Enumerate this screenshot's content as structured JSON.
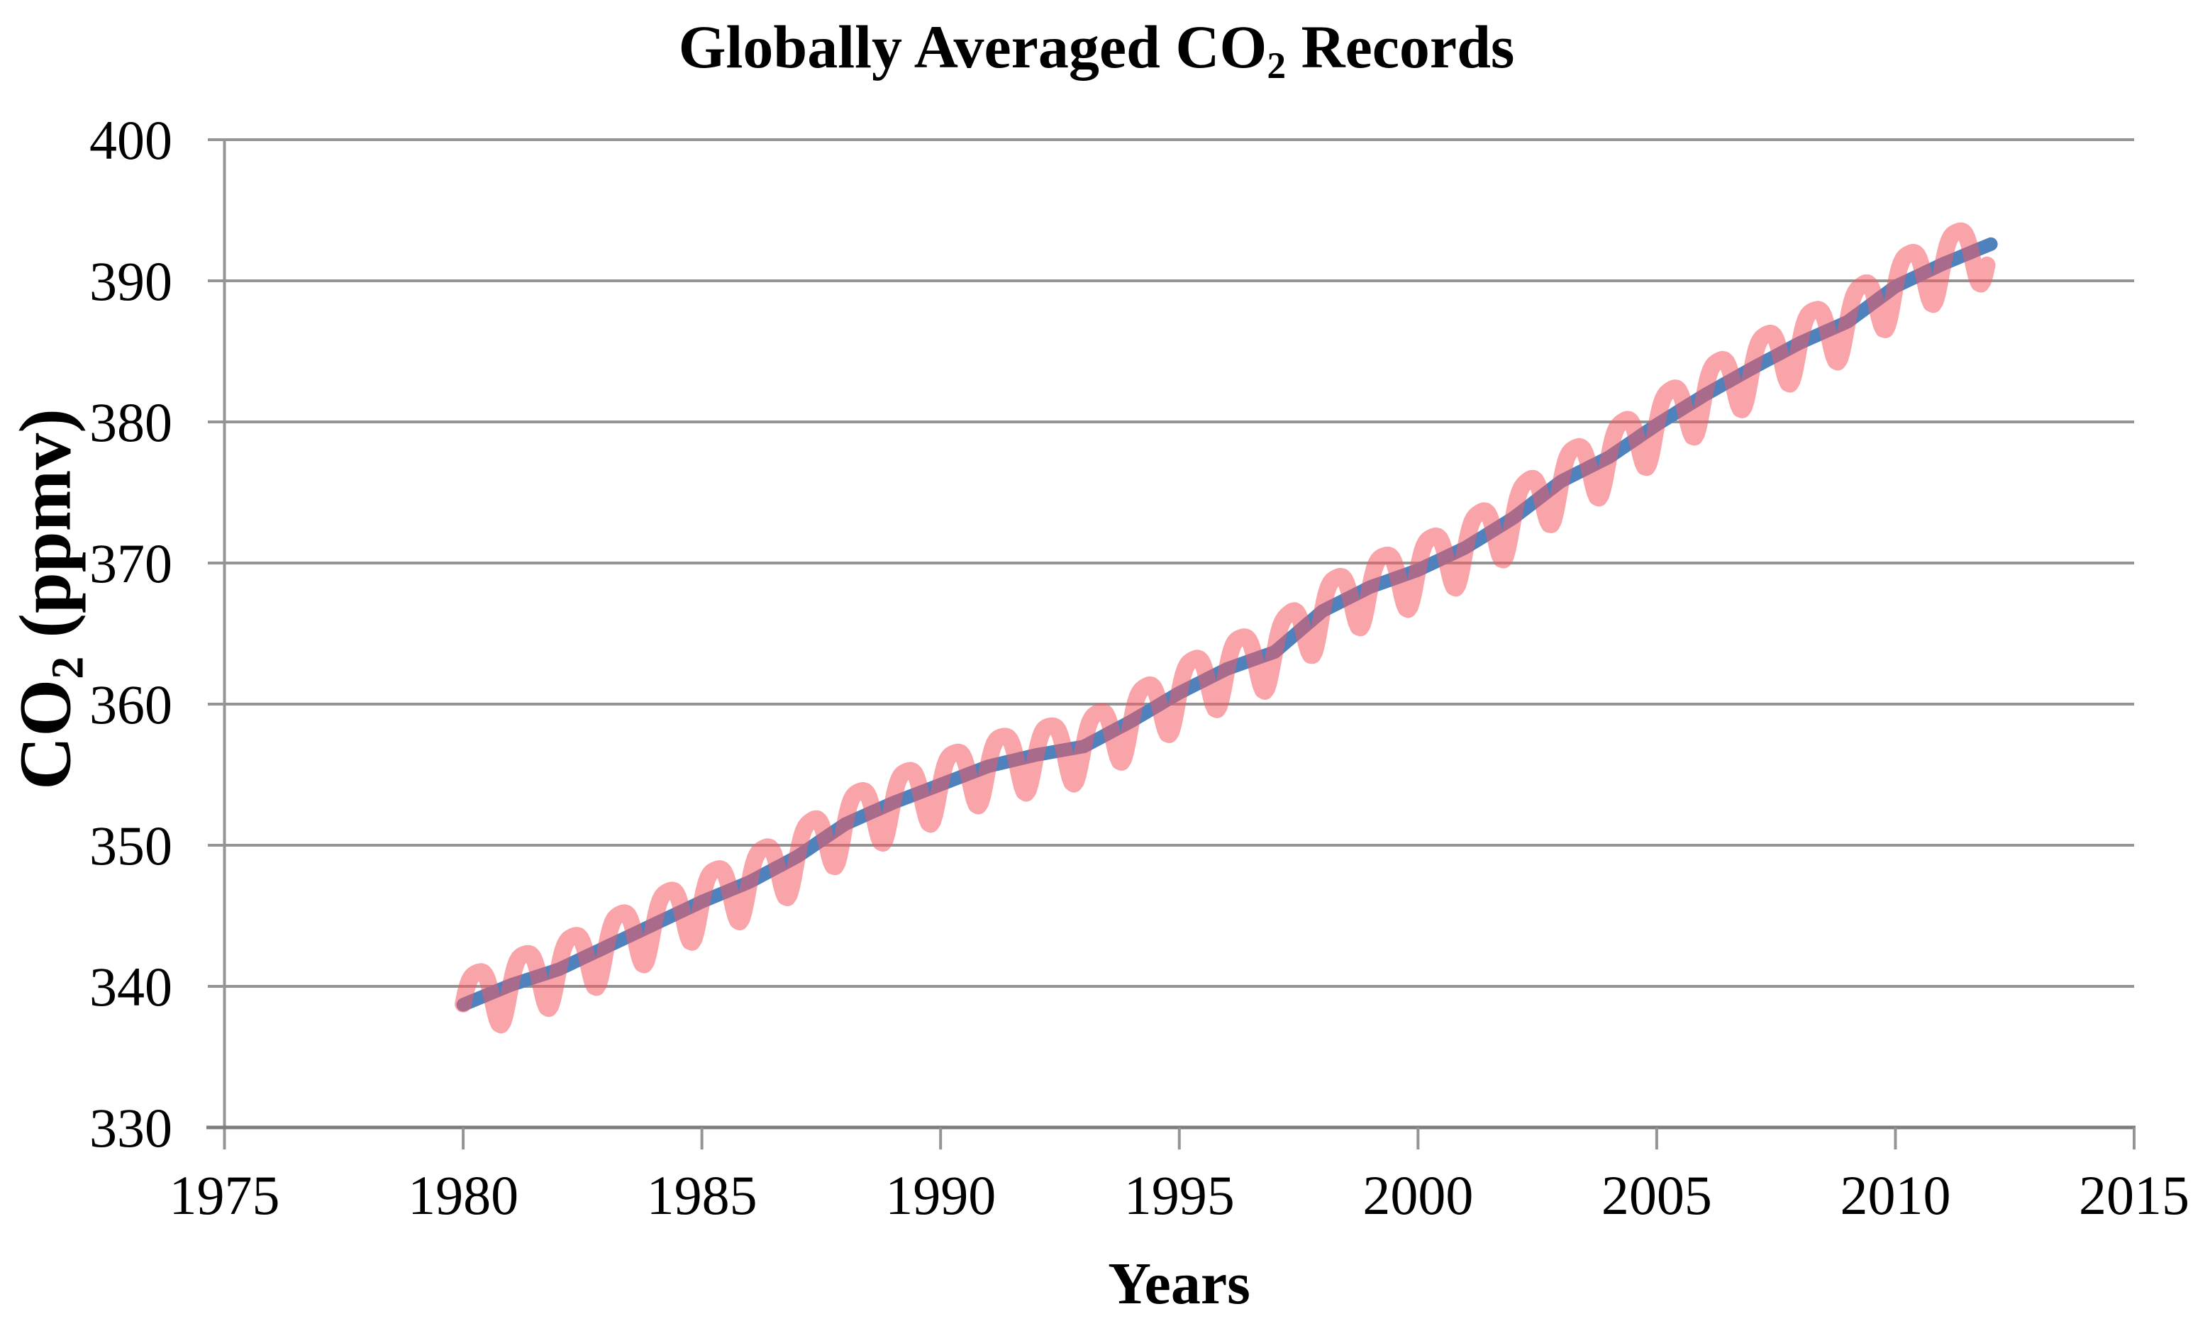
{
  "page": {
    "background": "#ffffff"
  },
  "chart_data": {
    "type": "line",
    "title": "Globally Averaged CO2 Records",
    "title_parts": {
      "prefix": "Globally Averaged CO",
      "sub": "2",
      "suffix": " Records"
    },
    "xlabel": "Years",
    "ylabel": "CO2 (ppmv)",
    "ylabel_parts": {
      "prefix": "CO",
      "sub": "2",
      "suffix": " (ppmv)"
    },
    "xlim": [
      1975,
      2015
    ],
    "ylim": [
      330,
      400
    ],
    "x_ticks": [
      1975,
      1980,
      1985,
      1990,
      1995,
      2000,
      2005,
      2010,
      2015
    ],
    "y_ticks": [
      330,
      340,
      350,
      360,
      370,
      380,
      390,
      400
    ],
    "grid": "horizontal-gray",
    "gridline_color": "#949494",
    "axis_color": "#7d7d7d",
    "legend": "none",
    "series": [
      {
        "name": "monthly-seasonal-co2",
        "color": "#F25A62",
        "opacity": 0.55,
        "stroke_width": 24,
        "style": "seasonal-oscillation-around-trend",
        "seasonal_amplitude_ppmv": 2.0,
        "seasonal_peak_fraction_of_year": 0.29,
        "x_start": 1980.0,
        "x_end": 2011.92
      },
      {
        "name": "deseasonalized-trend-co2",
        "color": "#4F81BD",
        "opacity": 1,
        "stroke_width": 19,
        "style": "smooth-trend",
        "x_start": 1980.0,
        "x_end": 2012.0
      }
    ],
    "trend": {
      "years": [
        1980,
        1981,
        1982,
        1983,
        1984,
        1985,
        1986,
        1987,
        1988,
        1989,
        1990,
        1991,
        1992,
        1993,
        1994,
        1995,
        1996,
        1997,
        1998,
        1999,
        2000,
        2001,
        2002,
        2003,
        2004,
        2005,
        2006,
        2007,
        2008,
        2009,
        2010,
        2011,
        2012
      ],
      "values": [
        338.7,
        340.1,
        341.2,
        342.8,
        344.4,
        346.0,
        347.4,
        349.2,
        351.5,
        353.0,
        354.3,
        355.6,
        356.4,
        357.0,
        358.8,
        360.8,
        362.5,
        363.7,
        366.6,
        368.3,
        369.5,
        371.1,
        373.2,
        375.8,
        377.5,
        379.8,
        381.9,
        383.8,
        385.6,
        387.1,
        389.6,
        391.2,
        392.6
      ]
    }
  }
}
